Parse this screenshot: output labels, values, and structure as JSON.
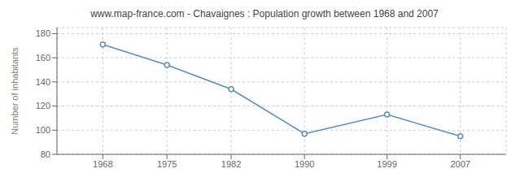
{
  "chart_data": {
    "type": "line",
    "title": "www.map-france.com - Chavaignes : Population growth between 1968 and 2007",
    "x": [
      1968,
      1975,
      1982,
      1990,
      1999,
      2007
    ],
    "values": [
      171,
      154,
      134,
      97,
      113,
      95
    ],
    "ylabel": "Number of inhabitants",
    "xlim": [
      1963,
      2012
    ],
    "ylim": [
      80,
      185
    ],
    "xticks": [
      1968,
      1975,
      1982,
      1990,
      1999,
      2007
    ],
    "yticks": [
      80,
      100,
      120,
      140,
      160,
      180
    ],
    "color": "#5b8db8",
    "marker": "circle",
    "grid": true
  }
}
